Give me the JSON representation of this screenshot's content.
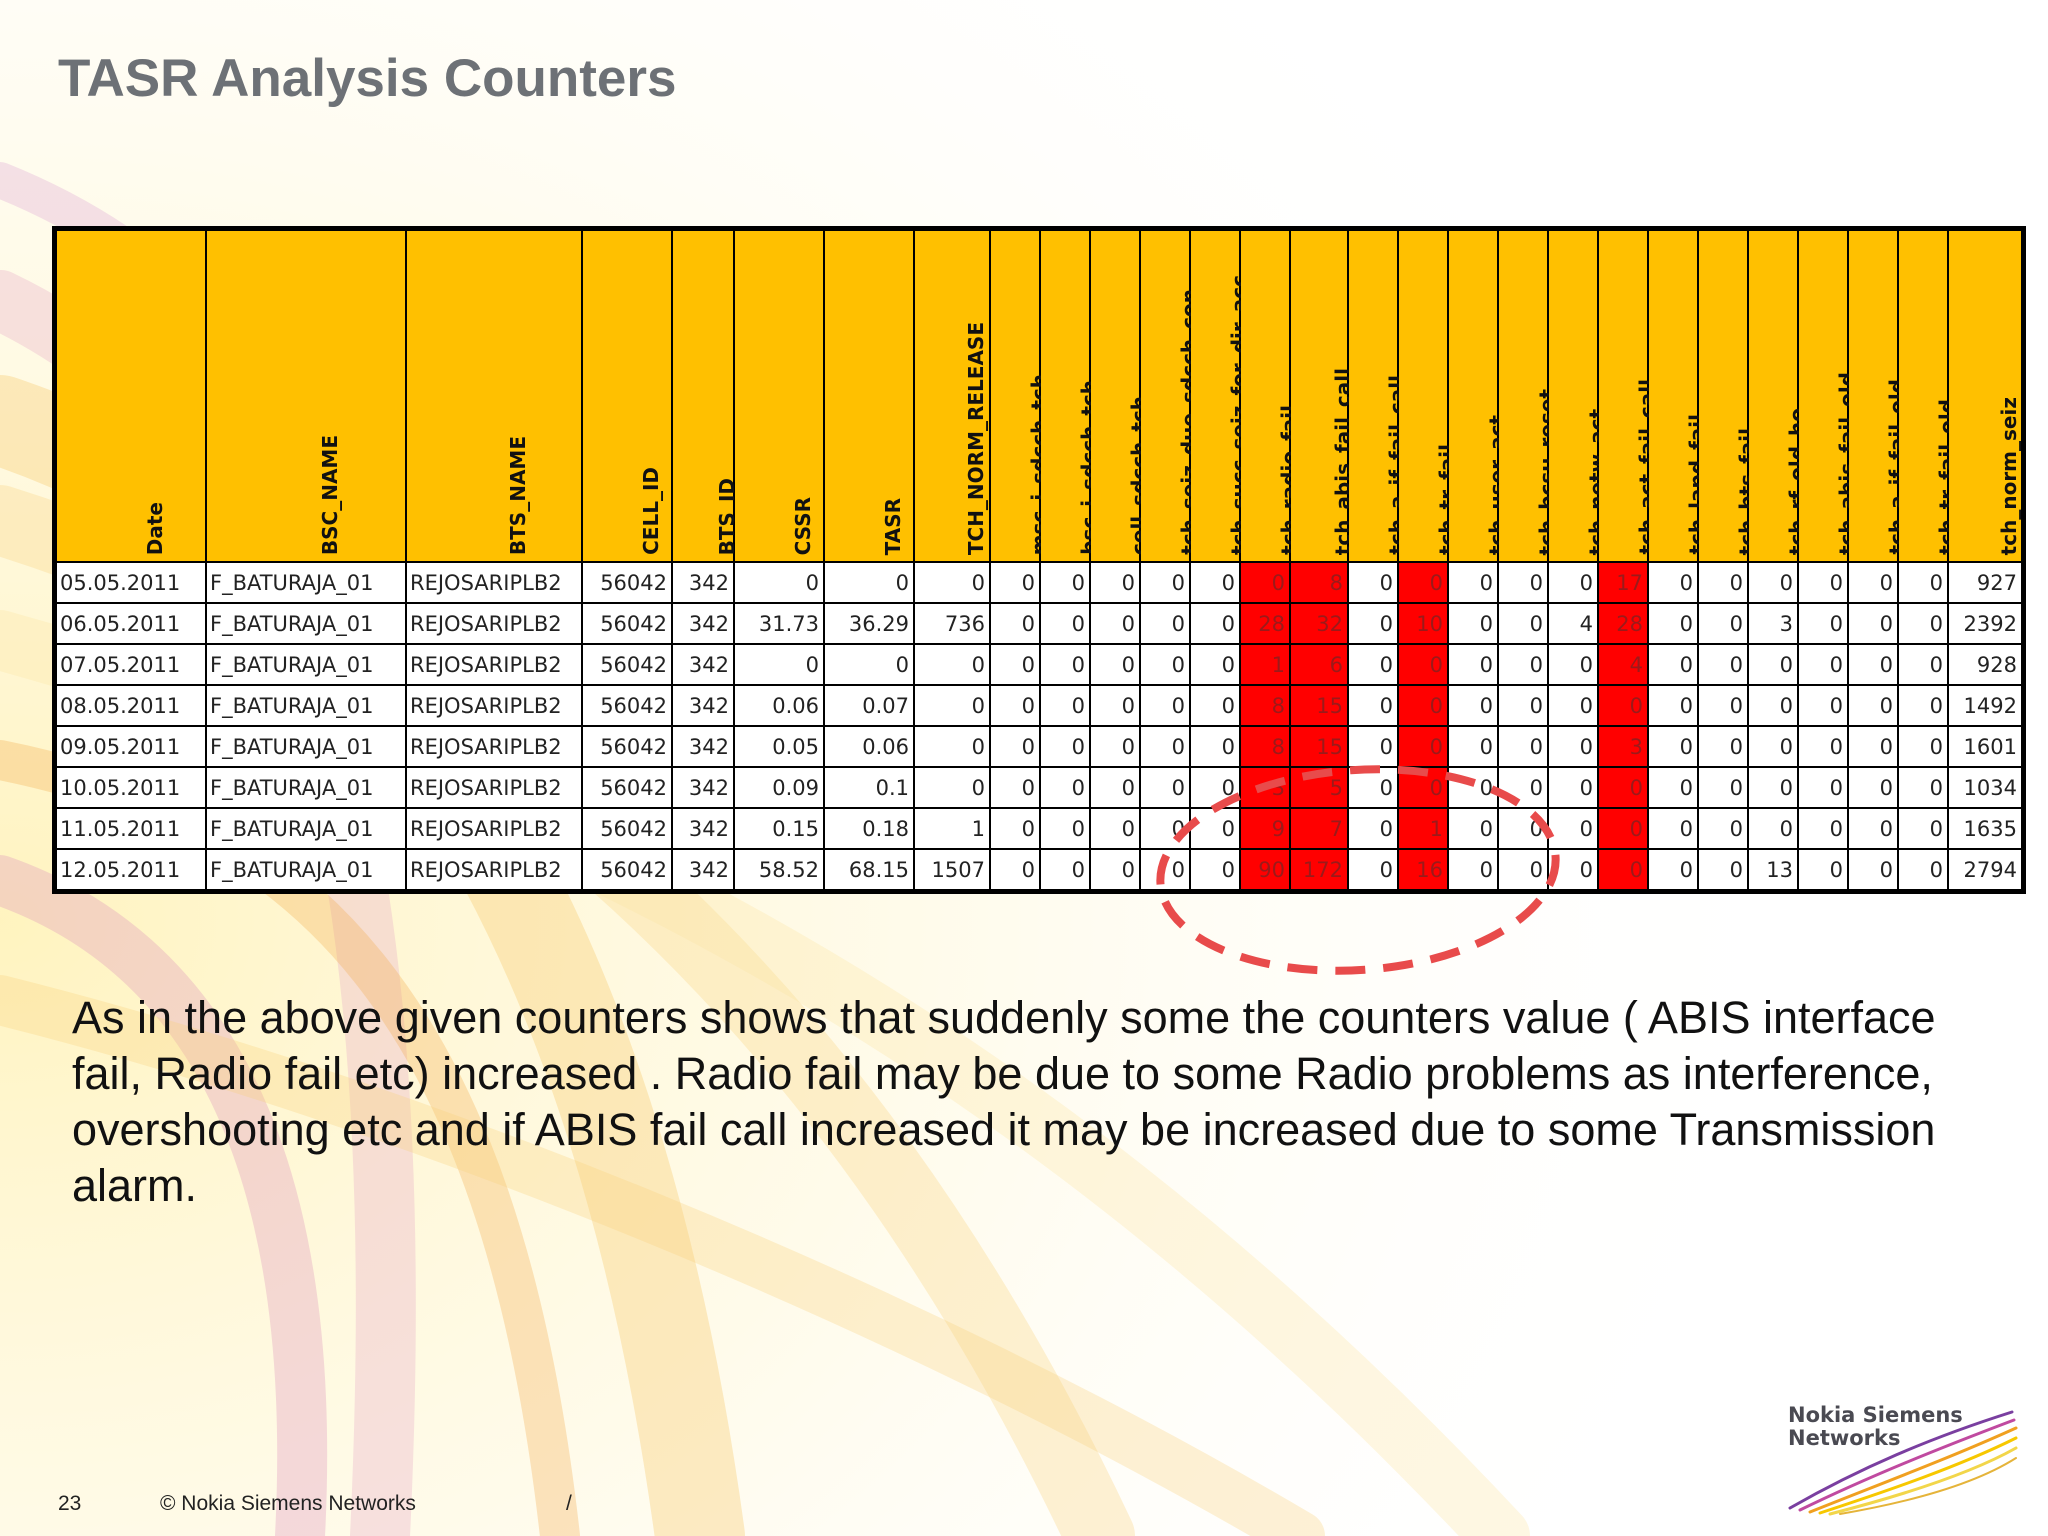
{
  "slide": {
    "title": "TASR Analysis Counters",
    "body": "As in the above given counters shows that suddenly some the counters value ( ABIS interface fail, Radio fail etc)  increased . Radio fail may be due to some Radio problems as interference, overshooting etc and if ABIS fail call increased it may be increased due to some Transmission alarm.",
    "colors": {
      "title": "#6d7176",
      "header_fill": "#ffc000",
      "highlight_fill": "#ff0000",
      "highlight_text": "#9b1a1a",
      "annotation_circle": "#e84b4b"
    }
  },
  "table": {
    "headers": [
      "Date",
      "BSC_NAME",
      "BTS_NAME",
      "CELL_ID",
      "BTS_ID",
      "CSSR",
      "TASR",
      "TCH_NORM_RELEASE",
      "msc_i_sdcch_tch",
      "bsc_i_sdcch_tch",
      "cell_sdcch_tch",
      "tch_seiz_due_sdcch_con",
      "tch_succ_seiz_for_dir_acc",
      "tch_radio_fail",
      "tch_abis_fail_call",
      "tch_a_if_fail_call",
      "tch_tr_fail",
      "tch_user_act",
      "tch_bcsu_reset",
      "tch_netw_act",
      "tch_act_fail_call",
      "tch_lapd_fail",
      "tch_bts_fail",
      "tch_rf_old_ho",
      "tch_abis_fail_old",
      "tch_a_if_fail_old",
      "tch_tr_fail_old",
      "tch_norm_seiz"
    ],
    "highlighted_columns": [
      "tch_radio_fail",
      "tch_abis_fail_call",
      "tch_tr_fail",
      "tch_act_fail_call"
    ],
    "rows": [
      [
        "05.05.2011",
        "F_BATURAJA_01",
        "REJOSARIPLB2",
        "56042",
        "342",
        "0",
        "0",
        "0",
        "0",
        "0",
        "0",
        "0",
        "0",
        "0",
        "8",
        "0",
        "0",
        "0",
        "0",
        "0",
        "17",
        "0",
        "0",
        "0",
        "0",
        "0",
        "0",
        "927"
      ],
      [
        "06.05.2011",
        "F_BATURAJA_01",
        "REJOSARIPLB2",
        "56042",
        "342",
        "31.73",
        "36.29",
        "736",
        "0",
        "0",
        "0",
        "0",
        "0",
        "28",
        "32",
        "0",
        "10",
        "0",
        "0",
        "4",
        "28",
        "0",
        "0",
        "3",
        "0",
        "0",
        "0",
        "2392"
      ],
      [
        "07.05.2011",
        "F_BATURAJA_01",
        "REJOSARIPLB2",
        "56042",
        "342",
        "0",
        "0",
        "0",
        "0",
        "0",
        "0",
        "0",
        "0",
        "1",
        "6",
        "0",
        "0",
        "0",
        "0",
        "0",
        "4",
        "0",
        "0",
        "0",
        "0",
        "0",
        "0",
        "928"
      ],
      [
        "08.05.2011",
        "F_BATURAJA_01",
        "REJOSARIPLB2",
        "56042",
        "342",
        "0.06",
        "0.07",
        "0",
        "0",
        "0",
        "0",
        "0",
        "0",
        "8",
        "15",
        "0",
        "0",
        "0",
        "0",
        "0",
        "0",
        "0",
        "0",
        "0",
        "0",
        "0",
        "0",
        "1492"
      ],
      [
        "09.05.2011",
        "F_BATURAJA_01",
        "REJOSARIPLB2",
        "56042",
        "342",
        "0.05",
        "0.06",
        "0",
        "0",
        "0",
        "0",
        "0",
        "0",
        "8",
        "15",
        "0",
        "0",
        "0",
        "0",
        "0",
        "3",
        "0",
        "0",
        "0",
        "0",
        "0",
        "0",
        "1601"
      ],
      [
        "10.05.2011",
        "F_BATURAJA_01",
        "REJOSARIPLB2",
        "56042",
        "342",
        "0.09",
        "0.1",
        "0",
        "0",
        "0",
        "0",
        "0",
        "0",
        "3",
        "5",
        "0",
        "0",
        "0",
        "0",
        "0",
        "0",
        "0",
        "0",
        "0",
        "0",
        "0",
        "0",
        "1034"
      ],
      [
        "11.05.2011",
        "F_BATURAJA_01",
        "REJOSARIPLB2",
        "56042",
        "342",
        "0.15",
        "0.18",
        "1",
        "0",
        "0",
        "0",
        "0",
        "0",
        "9",
        "7",
        "0",
        "1",
        "0",
        "0",
        "0",
        "0",
        "0",
        "0",
        "0",
        "0",
        "0",
        "0",
        "1635"
      ],
      [
        "12.05.2011",
        "F_BATURAJA_01",
        "REJOSARIPLB2",
        "56042",
        "342",
        "58.52",
        "68.15",
        "1507",
        "0",
        "0",
        "0",
        "0",
        "0",
        "90",
        "172",
        "0",
        "16",
        "0",
        "0",
        "0",
        "0",
        "0",
        "0",
        "13",
        "0",
        "0",
        "0",
        "2794"
      ]
    ]
  },
  "footer": {
    "page_number": "23",
    "copyright": "© Nokia Siemens Networks",
    "separator": "/"
  },
  "logo": {
    "line1": "Nokia Siemens",
    "line2": "Networks"
  }
}
